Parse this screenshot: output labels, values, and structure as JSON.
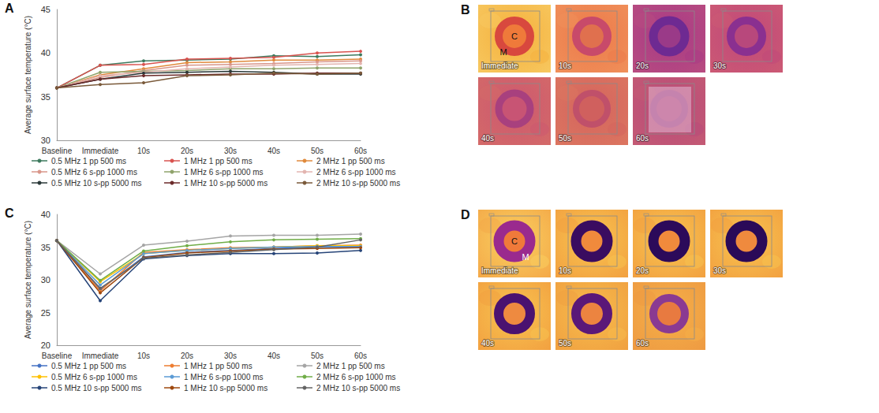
{
  "chart_data": [
    {
      "panel": "A",
      "type": "line",
      "y_label": "Average surface temperature (°C)",
      "categories": [
        "Baseline",
        "Immediate",
        "10s",
        "20s",
        "30s",
        "40s",
        "50s",
        "60s"
      ],
      "ylim": [
        30,
        45
      ],
      "yticks": [
        30,
        35,
        40,
        45
      ],
      "grid": false,
      "legend": "bottom",
      "marker": "circle",
      "series": [
        {
          "name": "0.5 MHz 1 pp 500 ms",
          "color": "#3d7a5e",
          "values": [
            36,
            38.6,
            39.1,
            39.2,
            39.3,
            39.7,
            39.6,
            39.8
          ]
        },
        {
          "name": "1 MHz 1 pp 500 ms",
          "color": "#d9534f",
          "values": [
            36,
            38.6,
            38.7,
            39.3,
            39.4,
            39.5,
            40.0,
            40.2
          ]
        },
        {
          "name": "2 MHz 1 pp 500 ms",
          "color": "#e08a3c",
          "values": [
            36,
            37.5,
            38.2,
            38.9,
            39.0,
            39.2,
            39.2,
            39.3
          ]
        },
        {
          "name": "0.5 MHz 6 s-pp 1000 ms",
          "color": "#d9968a",
          "values": [
            36,
            37.2,
            38.0,
            38.6,
            38.7,
            38.8,
            39.0,
            39.1
          ]
        },
        {
          "name": "1 MHz 6 s-pp 1000 ms",
          "color": "#8fa36b",
          "values": [
            36,
            37.8,
            37.9,
            38.0,
            38.2,
            38.2,
            38.3,
            38.3
          ]
        },
        {
          "name": "2 MHz 6 s-pp 1000 ms",
          "color": "#e3b5b0",
          "values": [
            36,
            37.4,
            37.8,
            38.2,
            38.4,
            38.6,
            38.7,
            38.8
          ]
        },
        {
          "name": "0.5 MHz 10 s-pp 5000 ms",
          "color": "#2b3a3a",
          "values": [
            36,
            37.0,
            37.7,
            37.8,
            37.9,
            37.8,
            37.6,
            37.6
          ]
        },
        {
          "name": "1 MHz 10 s-pp 5000 ms",
          "color": "#6b2a2a",
          "values": [
            36,
            37.0,
            37.4,
            37.5,
            37.6,
            37.6,
            37.7,
            37.7
          ]
        },
        {
          "name": "2 MHz 10 s-pp 5000 ms",
          "color": "#7a5a3a",
          "values": [
            36,
            36.4,
            36.6,
            37.4,
            37.5,
            37.7,
            37.6,
            37.7
          ]
        }
      ]
    },
    {
      "panel": "C",
      "type": "line",
      "y_label": "Average surface temperature (°C)",
      "categories": [
        "Baseline",
        "Immediate",
        "10s",
        "20s",
        "30s",
        "40s",
        "50s",
        "60s"
      ],
      "ylim": [
        20,
        40
      ],
      "yticks": [
        20,
        25,
        30,
        35,
        40
      ],
      "grid": false,
      "legend": "bottom",
      "marker": "circle",
      "series": [
        {
          "name": "0.5 MHz 1 pp 500 ms",
          "color": "#4472c4",
          "values": [
            36,
            28.5,
            33.5,
            34.2,
            34.5,
            34.8,
            35.0,
            35.0
          ]
        },
        {
          "name": "1 MHz 1 pp 500 ms",
          "color": "#ed7d31",
          "values": [
            36,
            28.3,
            34.2,
            34.6,
            34.9,
            35.0,
            35.2,
            35.3
          ]
        },
        {
          "name": "2 MHz 1 pp 500 ms",
          "color": "#a5a5a5",
          "values": [
            36,
            30.9,
            35.3,
            35.9,
            36.7,
            36.8,
            36.8,
            37.0
          ]
        },
        {
          "name": "0.5 MHz 6 s-pp 1000 ms",
          "color": "#ffc000",
          "values": [
            36,
            29.7,
            34.0,
            34.5,
            34.8,
            35.0,
            35.2,
            35.2
          ]
        },
        {
          "name": "1 MHz 6 s-pp 1000 ms",
          "color": "#5b9bd5",
          "values": [
            36,
            29.2,
            34.0,
            34.5,
            34.8,
            35.0,
            35.1,
            35.1
          ]
        },
        {
          "name": "2 MHz 6 s-pp 1000 ms",
          "color": "#70ad47",
          "values": [
            36,
            29.9,
            34.4,
            35.2,
            35.8,
            36.1,
            36.2,
            36.3
          ]
        },
        {
          "name": "0.5 MHz 10 s-pp 5000 ms",
          "color": "#264478",
          "values": [
            36,
            26.8,
            33.2,
            33.7,
            34.0,
            34.0,
            34.1,
            34.5
          ]
        },
        {
          "name": "1 MHz 10 s-pp 5000 ms",
          "color": "#9e480e",
          "values": [
            36,
            28.0,
            33.4,
            34.1,
            34.4,
            34.7,
            34.8,
            34.9
          ]
        },
        {
          "name": "2 MHz 10 s-pp 5000 ms",
          "color": "#636363",
          "values": [
            36,
            28.7,
            33.3,
            33.8,
            34.2,
            34.6,
            35.0,
            36.1
          ]
        }
      ]
    }
  ],
  "thermal_images": [
    {
      "panel": "B",
      "region_labels": [
        "C",
        "M"
      ],
      "frames": [
        "Immediate",
        "10s",
        "20s",
        "30s",
        "40s",
        "50s",
        "60s"
      ]
    },
    {
      "panel": "D",
      "region_labels": [
        "C",
        "M"
      ],
      "frames": [
        "Immediate",
        "10s",
        "20s",
        "30s",
        "40s",
        "50s",
        "60s"
      ]
    }
  ]
}
